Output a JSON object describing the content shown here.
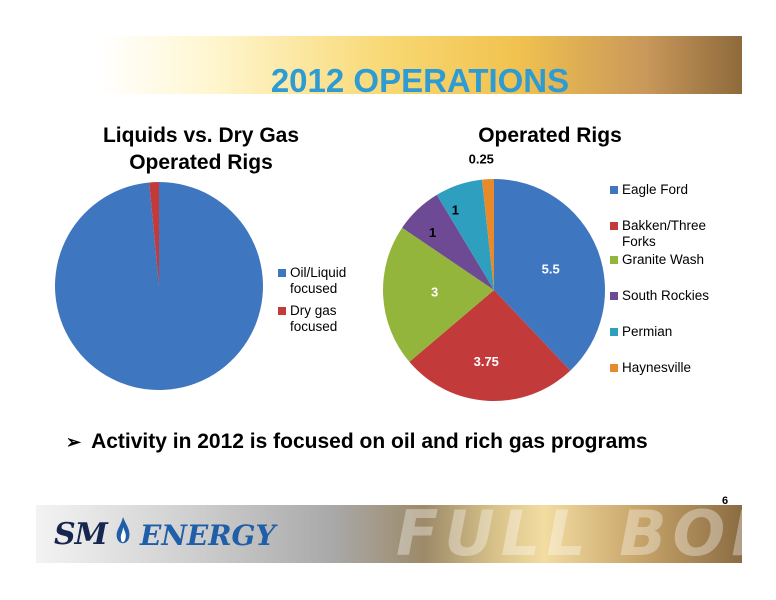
{
  "header": {
    "title": "2012 OPERATIONS"
  },
  "chart_data": [
    {
      "type": "pie",
      "title": "Liquids vs. Dry Gas Operated Rigs",
      "title_lines": [
        "Liquids vs. Dry Gas",
        "Operated Rigs"
      ],
      "categories": [
        "Oil/Liquid focused",
        "Dry gas focused"
      ],
      "legend_lines": [
        [
          "Oil/Liquid",
          "focused"
        ],
        [
          "Dry gas",
          "focused"
        ]
      ],
      "values": [
        98.5,
        1.5
      ],
      "colors": [
        "#3f76c0",
        "#c23b3a"
      ],
      "legend": "right"
    },
    {
      "type": "pie",
      "title": "Operated Rigs",
      "categories": [
        "Eagle Ford",
        "Bakken/Three Forks",
        "Granite Wash",
        "South Rockies",
        "Permian",
        "Haynesville"
      ],
      "legend_lines": [
        [
          "Eagle Ford"
        ],
        [
          "Bakken/Three",
          "Forks"
        ],
        [
          "Granite Wash"
        ],
        [
          "South Rockies"
        ],
        [
          "Permian"
        ],
        [
          "Haynesville"
        ]
      ],
      "values": [
        5.5,
        3.75,
        3,
        1,
        1,
        0.25
      ],
      "data_labels": [
        "5.5",
        "3.75",
        "3",
        "1",
        "1",
        "0.25"
      ],
      "label_colors": [
        "#ffffff",
        "#ffffff",
        "#ffffff",
        "#000000",
        "#000000",
        "#000000"
      ],
      "colors": [
        "#3f76c0",
        "#c23b3a",
        "#93b53b",
        "#6f4a94",
        "#2f9fbf",
        "#e98a2a"
      ],
      "legend": "right"
    }
  ],
  "bullet": {
    "text": "Activity in 2012 is focused on oil and rich gas programs",
    "marker": "➢"
  },
  "page_number": "6",
  "footer": {
    "logo_sm": "SM",
    "logo_energy": "ENERGY",
    "banner": "FULL BORE"
  }
}
